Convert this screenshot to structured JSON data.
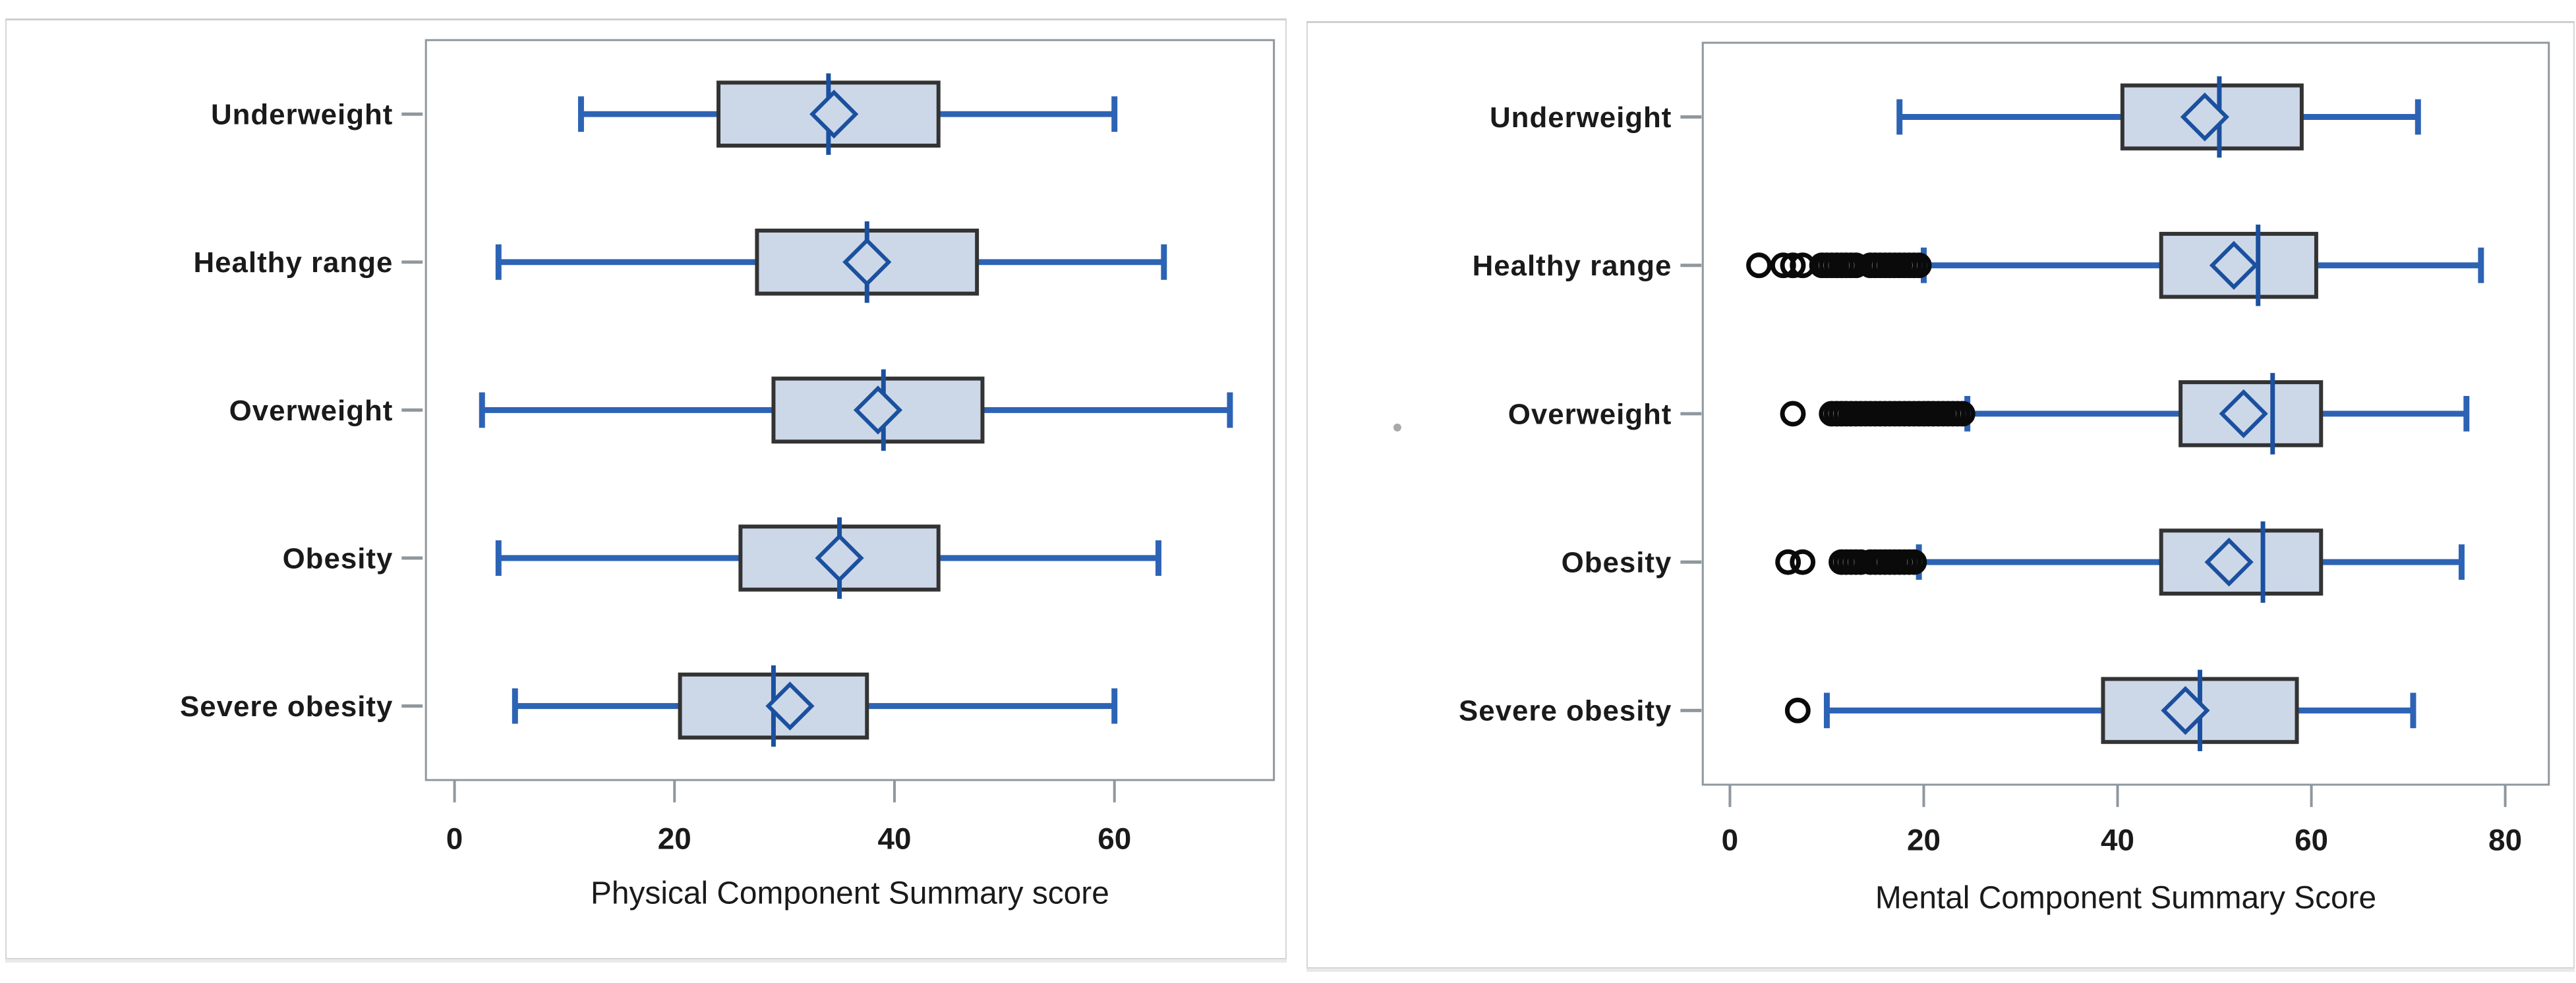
{
  "figure": {
    "description": "Two horizontal box-and-whisker plots of SF health survey component scores by BMI category",
    "background": "#ffffff"
  },
  "colors": {
    "panel_border": "#d6d6d6",
    "plot_frame": "#8f979e",
    "tick": "#8f979e",
    "box_fill": "#ccd8e8",
    "box_border": "#333333",
    "whisker": "#2d63b4",
    "median": "#1b509f",
    "mean_diamond": "#1b509f",
    "outlier": "#0a0a0a",
    "text": "#1a1a1a",
    "artifact_dot": "#a9a9a9"
  },
  "chart_data": [
    {
      "type": "boxplot-horizontal",
      "id": "pcs",
      "title": "",
      "xlabel": "Physical Component Summary score",
      "ylabel": "",
      "x_ticks": [
        0,
        20,
        40,
        60
      ],
      "x_min": -2.6,
      "x_max": 74.5,
      "grid": false,
      "legend": "none",
      "categories": [
        "Underweight",
        "Healthy range",
        "Overweight",
        "Obesity",
        "Severe obesity"
      ],
      "boxes": [
        {
          "category": "Underweight",
          "whisker_low": 11.5,
          "q1": 24,
          "median": 34,
          "mean": 34.5,
          "q3": 44,
          "whisker_high": 60,
          "outliers": []
        },
        {
          "category": "Healthy range",
          "whisker_low": 4,
          "q1": 27.5,
          "median": 37.5,
          "mean": 37.5,
          "q3": 47.5,
          "whisker_high": 64.5,
          "outliers": []
        },
        {
          "category": "Overweight",
          "whisker_low": 2.5,
          "q1": 29,
          "median": 39,
          "mean": 38.5,
          "q3": 48,
          "whisker_high": 70.5,
          "outliers": []
        },
        {
          "category": "Obesity",
          "whisker_low": 4,
          "q1": 26,
          "median": 35,
          "mean": 35,
          "q3": 44,
          "whisker_high": 64,
          "outliers": []
        },
        {
          "category": "Severe obesity",
          "whisker_low": 5.5,
          "q1": 20.5,
          "median": 29,
          "mean": 30.5,
          "q3": 37.5,
          "whisker_high": 60,
          "outliers": []
        }
      ]
    },
    {
      "type": "boxplot-horizontal",
      "id": "mcs",
      "title": "",
      "xlabel": "Mental Component Summary Score",
      "ylabel": "",
      "x_ticks": [
        0,
        20,
        40,
        60,
        80
      ],
      "x_min": -2.8,
      "x_max": 84.5,
      "grid": false,
      "legend": "none",
      "categories": [
        "Underweight",
        "Healthy range",
        "Overweight",
        "Obesity",
        "Severe obesity"
      ],
      "boxes": [
        {
          "category": "Underweight",
          "whisker_low": 17.5,
          "q1": 40.5,
          "median": 50.5,
          "mean": 49,
          "q3": 59,
          "whisker_high": 71,
          "outliers": []
        },
        {
          "category": "Healthy range",
          "whisker_low": 20,
          "q1": 44.5,
          "median": 54.5,
          "mean": 52,
          "q3": 60.5,
          "whisker_high": 77.5,
          "outliers": [
            3,
            5.5,
            6.5,
            7.5,
            9.5,
            10,
            10.5,
            11,
            11.5,
            12,
            12.5,
            13,
            14.5,
            15,
            15.5,
            16,
            16.5,
            17,
            17.5,
            18,
            18.5,
            19,
            19.5
          ]
        },
        {
          "category": "Overweight",
          "whisker_low": 24.5,
          "q1": 46.5,
          "median": 56,
          "mean": 53,
          "q3": 61,
          "whisker_high": 76,
          "outliers": [
            6.5,
            10.5,
            11,
            11.5,
            12,
            12.5,
            13,
            13.5,
            14,
            14.5,
            15,
            15.5,
            16,
            16.5,
            17,
            17.5,
            18,
            18.5,
            19,
            19.5,
            20,
            20.5,
            21,
            21.5,
            22,
            22.5,
            23,
            23.5,
            24
          ]
        },
        {
          "category": "Obesity",
          "whisker_low": 19.5,
          "q1": 44.5,
          "median": 55,
          "mean": 51.5,
          "q3": 61,
          "whisker_high": 75.5,
          "outliers": [
            6,
            7.5,
            11.5,
            12,
            12.5,
            13,
            13.5,
            14.5,
            15,
            15.5,
            16,
            16.5,
            17,
            17.5,
            18,
            18.5,
            19
          ]
        },
        {
          "category": "Severe obesity",
          "whisker_low": 10,
          "q1": 38.5,
          "median": 48.5,
          "mean": 47,
          "q3": 58.5,
          "whisker_high": 70.5,
          "outliers": [
            7
          ]
        }
      ]
    }
  ]
}
